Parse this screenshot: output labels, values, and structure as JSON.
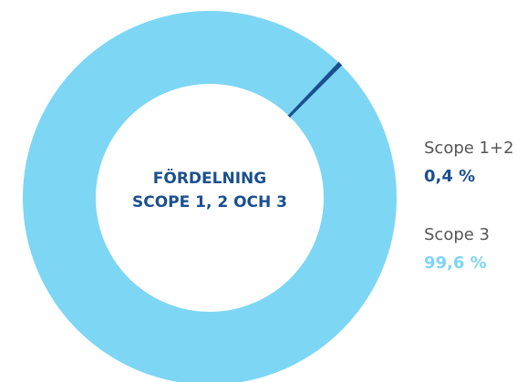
{
  "chart_data": {
    "type": "donut",
    "title": [
      "FÖRDELNING",
      "SCOPE 1, 2 OCH 3"
    ],
    "categories": [
      "Scope 1+2",
      "Scope 3"
    ],
    "values": [
      0.4,
      99.6
    ],
    "value_labels": [
      "0,4 %",
      "99,6 %"
    ],
    "colors": [
      "#1b4f8f",
      "#7dd6f4"
    ]
  }
}
